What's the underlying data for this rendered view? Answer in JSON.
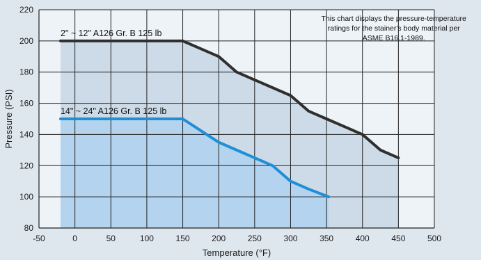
{
  "chart_data": {
    "type": "line",
    "xlabel": "Temperature (°F)",
    "ylabel": "Pressure (PSI)",
    "xlim": [
      -50,
      500
    ],
    "ylim": [
      80,
      220
    ],
    "x_ticks": [
      -50,
      0,
      50,
      100,
      150,
      200,
      250,
      300,
      350,
      400,
      450,
      500
    ],
    "y_ticks": [
      80,
      100,
      120,
      140,
      160,
      180,
      200,
      220
    ],
    "grid": true,
    "annotation": {
      "lines": [
        "This chart displays the pressure-temperature",
        "ratings  for the stainer's body material per",
        "ASME B16.1-1989."
      ]
    },
    "series": [
      {
        "name": "2\" ~ 12\" A126 Gr. B 125 lb",
        "color": "#2f2f2f",
        "fill": "#c9d8e6",
        "x": [
          -20,
          150,
          175,
          200,
          225,
          250,
          275,
          300,
          325,
          350,
          375,
          400,
          425,
          450
        ],
        "y": [
          200,
          200,
          195,
          190,
          180,
          175,
          170,
          165,
          155,
          150,
          145,
          140,
          130,
          125
        ]
      },
      {
        "name": "14\" ~ 24\" A126 Gr. B 125 lb",
        "color": "#1f8fd6",
        "fill": "#b3d3ee",
        "x": [
          -20,
          150,
          175,
          200,
          225,
          250,
          275,
          300,
          325,
          353
        ],
        "y": [
          150,
          150,
          142.5,
          135,
          130,
          125,
          120,
          110,
          105,
          100
        ]
      }
    ]
  }
}
